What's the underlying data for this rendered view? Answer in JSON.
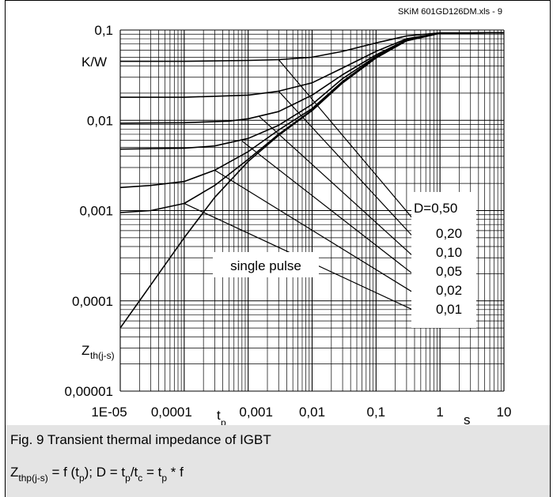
{
  "chart_data": {
    "type": "line",
    "title": "",
    "source_label": "SKiM 601GD126DM.xls - 9",
    "xscale": "log",
    "yscale": "log",
    "xlim": [
      1e-05,
      10
    ],
    "ylim": [
      1e-05,
      0.1
    ],
    "grid": true,
    "x_ticks": [
      "1E-05",
      "0,0001",
      "0,001",
      "0,01",
      "0,1",
      "1",
      "10"
    ],
    "y_ticks": [
      "0,1",
      "0,01",
      "0,001",
      "0,0001",
      "0,00001"
    ],
    "xlabel": "t",
    "xlabel_sub": "p",
    "x_unit": "s",
    "ylabel": "Z",
    "ylabel_sub": "th(j-s)",
    "y_unit": "K/W",
    "annotation": "single pulse",
    "legend_title": "D=0,50",
    "legend_entries": [
      "0,20",
      "0,10",
      "0,05",
      "0,02",
      "0,01"
    ],
    "series": [
      {
        "name": "0,50",
        "x": [
          1e-05,
          0.0001,
          0.001,
          0.003,
          0.01,
          0.03,
          0.1,
          0.3,
          1,
          10
        ],
        "y": [
          0.045,
          0.045,
          0.046,
          0.047,
          0.05,
          0.058,
          0.072,
          0.086,
          0.093,
          0.093
        ]
      },
      {
        "name": "0,20",
        "x": [
          1e-05,
          0.0001,
          0.001,
          0.003,
          0.01,
          0.03,
          0.1,
          0.3,
          1,
          10
        ],
        "y": [
          0.018,
          0.018,
          0.019,
          0.021,
          0.026,
          0.038,
          0.058,
          0.08,
          0.092,
          0.093
        ]
      },
      {
        "name": "0,10",
        "x": [
          1e-05,
          0.0001,
          0.0005,
          0.001,
          0.003,
          0.01,
          0.03,
          0.1,
          0.3,
          1,
          10
        ],
        "y": [
          0.0093,
          0.0094,
          0.0098,
          0.0104,
          0.0125,
          0.019,
          0.032,
          0.053,
          0.078,
          0.092,
          0.093
        ]
      },
      {
        "name": "0,05",
        "x": [
          1e-05,
          0.0001,
          0.0003,
          0.001,
          0.003,
          0.01,
          0.03,
          0.1,
          0.3,
          1,
          10
        ],
        "y": [
          0.0048,
          0.0049,
          0.0052,
          0.0063,
          0.0088,
          0.015,
          0.029,
          0.051,
          0.077,
          0.092,
          0.093
        ]
      },
      {
        "name": "0,02",
        "x": [
          1e-05,
          3e-05,
          0.0001,
          0.0003,
          0.001,
          0.003,
          0.01,
          0.03,
          0.1,
          0.3,
          1,
          10
        ],
        "y": [
          0.0018,
          0.0019,
          0.0021,
          0.0028,
          0.0045,
          0.0078,
          0.0135,
          0.027,
          0.05,
          0.076,
          0.092,
          0.093
        ]
      },
      {
        "name": "0,01",
        "x": [
          1e-05,
          3e-05,
          0.0001,
          0.0003,
          0.001,
          0.003,
          0.01,
          0.03,
          0.1,
          0.3,
          1,
          10
        ],
        "y": [
          0.00095,
          0.001,
          0.0012,
          0.0019,
          0.0037,
          0.007,
          0.013,
          0.026,
          0.049,
          0.076,
          0.092,
          0.093
        ]
      },
      {
        "name": "single pulse",
        "x": [
          1e-05,
          3e-05,
          0.0001,
          0.0003,
          0.001,
          0.003,
          0.01,
          0.03,
          0.1,
          0.3,
          1,
          10
        ],
        "y": [
          5e-05,
          0.00015,
          0.0005,
          0.0014,
          0.0035,
          0.0068,
          0.0128,
          0.026,
          0.049,
          0.076,
          0.092,
          0.093
        ]
      }
    ],
    "guide_lines": [
      {
        "name": "0,50",
        "from": [
          0.003,
          0.047
        ],
        "to": [
          0.45,
          0.0007
        ]
      },
      {
        "name": "0,20",
        "from": [
          0.003,
          0.021
        ],
        "to": [
          0.45,
          0.00045
        ]
      },
      {
        "name": "0,10",
        "from": [
          0.0015,
          0.011
        ],
        "to": [
          0.45,
          0.00028
        ]
      },
      {
        "name": "0,05",
        "from": [
          0.0008,
          0.0059
        ],
        "to": [
          0.45,
          0.00018
        ]
      },
      {
        "name": "0,02",
        "from": [
          0.0003,
          0.0028
        ],
        "to": [
          0.45,
          0.000115
        ]
      },
      {
        "name": "0,01",
        "from": [
          0.0001,
          0.0012
        ],
        "to": [
          0.45,
          7.5e-05
        ]
      }
    ]
  },
  "caption": {
    "line1": "Fig. 9 Transient thermal impedance of IGBT",
    "f_z": "Z",
    "f_z_sub": "thp(j-s)",
    "f_eq1": " = f (t",
    "f_tp_sub": "p",
    "f_eq2": "); D = t",
    "f_tp_sub2": "p",
    "f_eq3": "/t",
    "f_tc_sub": "c",
    "f_eq4": " = t",
    "f_tp_sub3": "p",
    "f_eq5": " * f"
  }
}
